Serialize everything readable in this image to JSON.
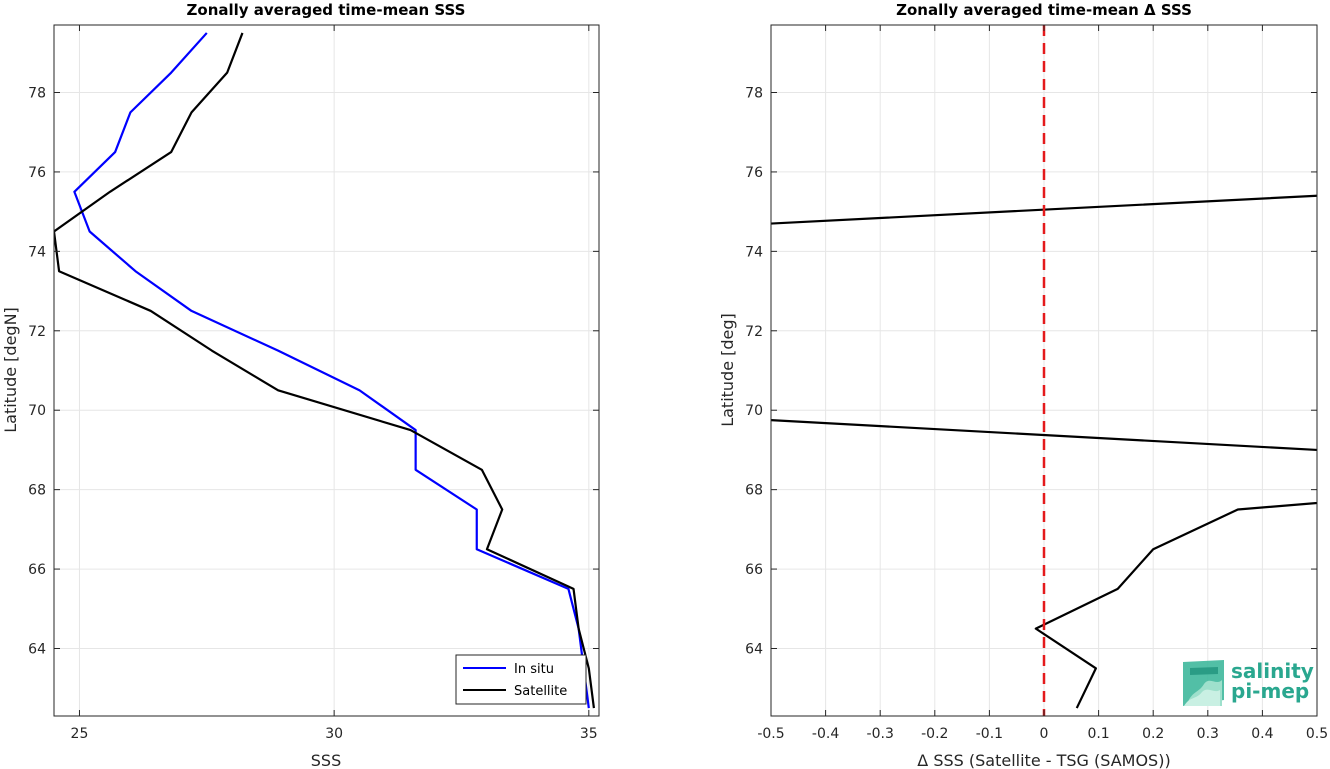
{
  "chart_data": [
    {
      "type": "line",
      "title": "Zonally averaged time-mean SSS",
      "xlabel": "SSS",
      "ylabel": "Latitude [degN]",
      "xlim": [
        24.5,
        35.2
      ],
      "ylim": [
        62.3,
        79.7
      ],
      "xticks": [
        25,
        30,
        35
      ],
      "xtick_labels": [
        "25",
        "30",
        "35"
      ],
      "yticks": [
        64,
        66,
        68,
        70,
        72,
        74,
        76,
        78
      ],
      "ytick_labels": [
        "64",
        "66",
        "68",
        "70",
        "72",
        "74",
        "76",
        "78"
      ],
      "grid": true,
      "legend": "bottom-right",
      "series": [
        {
          "name": "In situ",
          "color": "#0000ff",
          "points": [
            {
              "x": 35.0,
              "y": 62.5
            },
            {
              "x": 34.9,
              "y": 63.5
            },
            {
              "x": 34.8,
              "y": 64.5
            },
            {
              "x": 34.6,
              "y": 65.5
            },
            {
              "x": 32.8,
              "y": 66.5
            },
            {
              "x": 32.8,
              "y": 67.5
            },
            {
              "x": 31.6,
              "y": 68.5
            },
            {
              "x": 31.6,
              "y": 69.5
            },
            {
              "x": 30.5,
              "y": 70.5
            },
            {
              "x": 28.9,
              "y": 71.5
            },
            {
              "x": 27.2,
              "y": 72.5
            },
            {
              "x": 26.1,
              "y": 73.5
            },
            {
              "x": 25.2,
              "y": 74.5
            },
            {
              "x": 24.9,
              "y": 75.5
            },
            {
              "x": 25.7,
              "y": 76.5
            },
            {
              "x": 26.0,
              "y": 77.5
            },
            {
              "x": 26.8,
              "y": 78.5
            },
            {
              "x": 27.5,
              "y": 79.5
            }
          ]
        },
        {
          "name": "Satellite",
          "color": "#000000",
          "points": [
            {
              "x": 35.1,
              "y": 62.5
            },
            {
              "x": 35.0,
              "y": 63.5
            },
            {
              "x": 34.8,
              "y": 64.5
            },
            {
              "x": 34.7,
              "y": 65.5
            },
            {
              "x": 33.0,
              "y": 66.5
            },
            {
              "x": 33.3,
              "y": 67.5
            },
            {
              "x": 32.9,
              "y": 68.5
            },
            {
              "x": 31.5,
              "y": 69.5
            },
            {
              "x": 28.9,
              "y": 70.5
            },
            {
              "x": 27.6,
              "y": 71.5
            },
            {
              "x": 26.4,
              "y": 72.5
            },
            {
              "x": 24.6,
              "y": 73.5
            },
            {
              "x": 24.5,
              "y": 74.5
            },
            {
              "x": 25.6,
              "y": 75.5
            },
            {
              "x": 26.8,
              "y": 76.5
            },
            {
              "x": 27.2,
              "y": 77.5
            },
            {
              "x": 27.9,
              "y": 78.5
            },
            {
              "x": 28.2,
              "y": 79.5
            }
          ]
        }
      ]
    },
    {
      "type": "line",
      "title": "Zonally averaged time-mean Δ SSS",
      "xlabel": "Δ SSS (Satellite - TSG (SAMOS))",
      "ylabel": "Latitude [deg]",
      "xlim": [
        -0.5,
        0.5
      ],
      "ylim": [
        62.3,
        79.7
      ],
      "xticks": [
        -0.5,
        -0.4,
        -0.3,
        -0.2,
        -0.1,
        0,
        0.1,
        0.2,
        0.3,
        0.4,
        0.5
      ],
      "xtick_labels": [
        "-0.5",
        "-0.4",
        "-0.3",
        "-0.2",
        "-0.1",
        "0",
        "0.1",
        "0.2",
        "0.3",
        "0.4",
        "0.5"
      ],
      "yticks": [
        64,
        66,
        68,
        70,
        72,
        74,
        76,
        78
      ],
      "ytick_labels": [
        "64",
        "66",
        "68",
        "70",
        "72",
        "74",
        "76",
        "78"
      ],
      "grid": true,
      "reference_line": {
        "x": 0,
        "color": "#e41a1c",
        "style": "dashed"
      },
      "series": [
        {
          "color": "#000000",
          "points": [
            {
              "x": 0.06,
              "y": 62.5
            },
            {
              "x": 0.095,
              "y": 63.5
            },
            {
              "x": -0.015,
              "y": 64.5
            },
            {
              "x": 0.135,
              "y": 65.5
            },
            {
              "x": 0.2,
              "y": 66.5
            },
            {
              "x": 0.355,
              "y": 67.5
            },
            {
              "x": 0.8,
              "y": 68.0
            },
            {
              "x": 0.5,
              "y": 69.0
            },
            {
              "x": -0.5,
              "y": 69.75
            },
            {
              "x": -1.0,
              "y": 70.0
            },
            {
              "x": -1.0,
              "y": 74.5
            },
            {
              "x": -0.5,
              "y": 74.7
            },
            {
              "x": 0.5,
              "y": 75.4
            },
            {
              "x": 1.0,
              "y": 75.8
            }
          ]
        }
      ]
    }
  ],
  "logo": {
    "line1": "salinity",
    "line2": "pi-mep"
  }
}
